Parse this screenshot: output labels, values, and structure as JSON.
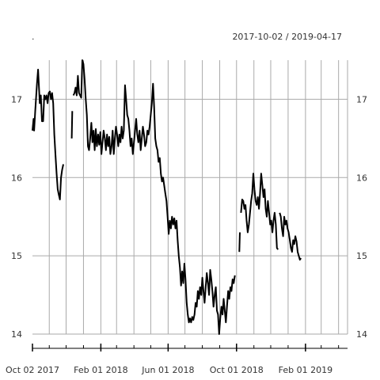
{
  "chart_data": {
    "type": "line",
    "title": ".",
    "subtitle": "2017-10-02 / 2019-04-17",
    "x_range": [
      "2017-10-02",
      "2019-04-17"
    ],
    "ylim": [
      14,
      17.5
    ],
    "y_ticks": [
      14,
      15,
      16,
      17
    ],
    "y_tick_labels": [
      "14",
      "15",
      "16",
      "17"
    ],
    "x_ticks": [
      "2017-10-02",
      "2018-02-01",
      "2018-06-01",
      "2018-10-01",
      "2019-02-01"
    ],
    "x_tick_labels": [
      "Oct 02 2017",
      "Feb 01 2018",
      "Jun 01 2018",
      "Oct 01 2018",
      "Feb 01 2019"
    ],
    "grid": true,
    "legend": "none",
    "line_color": "#000000",
    "grid_color": "#aaaaaa",
    "series": [
      {
        "segments": [
          [
            [
              "2017-10-02",
              16.6
            ],
            [
              "2017-10-04",
              16.75
            ],
            [
              "2017-10-05",
              16.6
            ],
            [
              "2017-10-07",
              16.85
            ],
            [
              "2017-10-10",
              17.2
            ],
            [
              "2017-10-12",
              17.38
            ],
            [
              "2017-10-14",
              17.1
            ],
            [
              "2017-10-15",
              16.95
            ],
            [
              "2017-10-17",
              17.05
            ],
            [
              "2017-10-19",
              16.72
            ],
            [
              "2017-10-21",
              16.72
            ],
            [
              "2017-10-23",
              17.05
            ],
            [
              "2017-10-25",
              17.0
            ],
            [
              "2017-10-27",
              17.05
            ],
            [
              "2017-10-29",
              16.95
            ],
            [
              "2017-10-31",
              17.08
            ],
            [
              "2017-11-02",
              17.1
            ],
            [
              "2017-11-04",
              17.0
            ],
            [
              "2017-11-06",
              17.08
            ],
            [
              "2017-11-08",
              16.95
            ],
            [
              "2017-11-10",
              16.55
            ],
            [
              "2017-11-12",
              16.3
            ],
            [
              "2017-11-14",
              16.05
            ],
            [
              "2017-11-16",
              15.85
            ],
            [
              "2017-11-18",
              15.78
            ],
            [
              "2017-11-20",
              15.72
            ],
            [
              "2017-11-22",
              16.0
            ],
            [
              "2017-11-24",
              16.1
            ],
            [
              "2017-11-26",
              16.17
            ]
          ],
          [
            [
              "2017-12-11",
              16.5
            ],
            [
              "2017-12-12",
              16.85
            ]
          ],
          [
            [
              "2017-12-14",
              17.05
            ],
            [
              "2017-12-16",
              17.08
            ],
            [
              "2017-12-18",
              17.15
            ],
            [
              "2017-12-20",
              17.05
            ],
            [
              "2017-12-22",
              17.3
            ],
            [
              "2017-12-24",
              17.08
            ],
            [
              "2017-12-26",
              17.05
            ],
            [
              "2017-12-28",
              17.02
            ],
            [
              "2017-12-30",
              17.5
            ],
            [
              "2018-01-01",
              17.45
            ],
            [
              "2018-01-03",
              17.25
            ],
            [
              "2018-01-05",
              17.0
            ],
            [
              "2018-01-07",
              16.8
            ],
            [
              "2018-01-09",
              16.4
            ],
            [
              "2018-01-11",
              16.35
            ],
            [
              "2018-01-13",
              16.5
            ],
            [
              "2018-01-15",
              16.7
            ],
            [
              "2018-01-17",
              16.45
            ],
            [
              "2018-01-19",
              16.6
            ],
            [
              "2018-01-21",
              16.35
            ],
            [
              "2018-01-23",
              16.62
            ],
            [
              "2018-01-25",
              16.4
            ],
            [
              "2018-01-27",
              16.55
            ],
            [
              "2018-01-29",
              16.42
            ],
            [
              "2018-01-31",
              16.58
            ],
            [
              "2018-02-02",
              16.3
            ],
            [
              "2018-02-04",
              16.45
            ],
            [
              "2018-02-06",
              16.6
            ],
            [
              "2018-02-08",
              16.5
            ],
            [
              "2018-02-10",
              16.35
            ],
            [
              "2018-02-12",
              16.55
            ],
            [
              "2018-02-14",
              16.4
            ],
            [
              "2018-02-16",
              16.52
            ],
            [
              "2018-02-18",
              16.3
            ],
            [
              "2018-02-20",
              16.4
            ],
            [
              "2018-02-22",
              16.6
            ],
            [
              "2018-02-24",
              16.3
            ],
            [
              "2018-02-26",
              16.5
            ],
            [
              "2018-02-28",
              16.65
            ],
            [
              "2018-03-02",
              16.55
            ],
            [
              "2018-03-04",
              16.4
            ],
            [
              "2018-03-06",
              16.55
            ],
            [
              "2018-03-08",
              16.45
            ],
            [
              "2018-03-10",
              16.65
            ],
            [
              "2018-03-12",
              16.5
            ],
            [
              "2018-03-14",
              16.6
            ],
            [
              "2018-03-16",
              17.18
            ],
            [
              "2018-03-18",
              17.0
            ],
            [
              "2018-03-20",
              16.8
            ],
            [
              "2018-03-22",
              16.75
            ],
            [
              "2018-03-24",
              16.6
            ],
            [
              "2018-03-26",
              16.4
            ],
            [
              "2018-03-28",
              16.5
            ],
            [
              "2018-03-30",
              16.3
            ],
            [
              "2018-04-01",
              16.45
            ],
            [
              "2018-04-03",
              16.6
            ],
            [
              "2018-04-05",
              16.75
            ],
            [
              "2018-04-07",
              16.55
            ],
            [
              "2018-04-09",
              16.45
            ],
            [
              "2018-04-11",
              16.6
            ],
            [
              "2018-04-13",
              16.35
            ],
            [
              "2018-04-15",
              16.5
            ],
            [
              "2018-04-17",
              16.65
            ],
            [
              "2018-04-19",
              16.55
            ],
            [
              "2018-04-21",
              16.4
            ],
            [
              "2018-04-23",
              16.45
            ],
            [
              "2018-04-25",
              16.6
            ],
            [
              "2018-04-27",
              16.55
            ],
            [
              "2018-04-29",
              16.65
            ],
            [
              "2018-05-01",
              16.8
            ],
            [
              "2018-05-03",
              16.95
            ],
            [
              "2018-05-05",
              17.2
            ],
            [
              "2018-05-07",
              16.9
            ],
            [
              "2018-05-09",
              16.5
            ],
            [
              "2018-05-11",
              16.4
            ],
            [
              "2018-05-13",
              16.35
            ],
            [
              "2018-05-15",
              16.2
            ],
            [
              "2018-05-17",
              16.25
            ],
            [
              "2018-05-19",
              16.05
            ],
            [
              "2018-05-21",
              15.95
            ],
            [
              "2018-05-23",
              16.0
            ],
            [
              "2018-05-25",
              15.9
            ],
            [
              "2018-05-27",
              15.8
            ],
            [
              "2018-05-29",
              15.7
            ],
            [
              "2018-05-31",
              15.5
            ],
            [
              "2018-06-02",
              15.28
            ],
            [
              "2018-06-04",
              15.45
            ],
            [
              "2018-06-06",
              15.35
            ],
            [
              "2018-06-08",
              15.5
            ],
            [
              "2018-06-10",
              15.4
            ],
            [
              "2018-06-12",
              15.48
            ],
            [
              "2018-06-14",
              15.35
            ],
            [
              "2018-06-16",
              15.45
            ],
            [
              "2018-06-18",
              15.2
            ],
            [
              "2018-06-20",
              15.0
            ],
            [
              "2018-06-22",
              14.85
            ],
            [
              "2018-06-24",
              14.62
            ],
            [
              "2018-06-26",
              14.8
            ],
            [
              "2018-06-28",
              14.65
            ],
            [
              "2018-06-30",
              14.9
            ],
            [
              "2018-07-02",
              14.7
            ],
            [
              "2018-07-04",
              14.4
            ],
            [
              "2018-07-06",
              14.25
            ],
            [
              "2018-07-08",
              14.15
            ],
            [
              "2018-07-10",
              14.2
            ],
            [
              "2018-07-12",
              14.15
            ],
            [
              "2018-07-14",
              14.22
            ],
            [
              "2018-07-16",
              14.18
            ],
            [
              "2018-07-18",
              14.25
            ],
            [
              "2018-07-20",
              14.4
            ],
            [
              "2018-07-22",
              14.35
            ],
            [
              "2018-07-24",
              14.55
            ],
            [
              "2018-07-26",
              14.45
            ],
            [
              "2018-07-28",
              14.6
            ],
            [
              "2018-07-30",
              14.5
            ],
            [
              "2018-08-01",
              14.72
            ],
            [
              "2018-08-03",
              14.55
            ],
            [
              "2018-08-05",
              14.4
            ],
            [
              "2018-08-07",
              14.6
            ],
            [
              "2018-08-09",
              14.78
            ],
            [
              "2018-08-11",
              14.65
            ],
            [
              "2018-08-13",
              14.5
            ],
            [
              "2018-08-15",
              14.82
            ],
            [
              "2018-08-17",
              14.7
            ],
            [
              "2018-08-19",
              14.55
            ],
            [
              "2018-08-21",
              14.35
            ],
            [
              "2018-08-23",
              14.5
            ],
            [
              "2018-08-25",
              14.6
            ],
            [
              "2018-08-27",
              14.3
            ],
            [
              "2018-08-29",
              14.25
            ],
            [
              "2018-08-31",
              14.0
            ],
            [
              "2018-09-02",
              14.2
            ],
            [
              "2018-09-04",
              14.35
            ],
            [
              "2018-09-06",
              14.25
            ],
            [
              "2018-09-08",
              14.45
            ],
            [
              "2018-09-10",
              14.3
            ],
            [
              "2018-09-12",
              14.15
            ],
            [
              "2018-09-14",
              14.35
            ],
            [
              "2018-09-16",
              14.55
            ],
            [
              "2018-09-18",
              14.45
            ],
            [
              "2018-09-20",
              14.6
            ],
            [
              "2018-09-22",
              14.55
            ],
            [
              "2018-09-24",
              14.7
            ],
            [
              "2018-09-26",
              14.65
            ],
            [
              "2018-09-28",
              14.75
            ]
          ],
          [
            [
              "2018-10-06",
              15.05
            ],
            [
              "2018-10-07",
              15.3
            ]
          ],
          [
            [
              "2018-10-09",
              15.55
            ],
            [
              "2018-10-11",
              15.72
            ],
            [
              "2018-10-13",
              15.7
            ],
            [
              "2018-10-15",
              15.6
            ],
            [
              "2018-10-17",
              15.65
            ],
            [
              "2018-10-19",
              15.45
            ],
            [
              "2018-10-21",
              15.3
            ],
            [
              "2018-10-23",
              15.4
            ],
            [
              "2018-10-25",
              15.55
            ],
            [
              "2018-10-27",
              15.7
            ],
            [
              "2018-10-29",
              15.8
            ],
            [
              "2018-10-31",
              16.05
            ],
            [
              "2018-11-02",
              15.85
            ],
            [
              "2018-11-04",
              15.7
            ],
            [
              "2018-11-06",
              15.65
            ],
            [
              "2018-11-08",
              15.75
            ],
            [
              "2018-11-10",
              15.6
            ],
            [
              "2018-11-12",
              15.8
            ],
            [
              "2018-11-14",
              16.05
            ],
            [
              "2018-11-16",
              15.9
            ],
            [
              "2018-11-18",
              15.75
            ],
            [
              "2018-11-20",
              15.85
            ],
            [
              "2018-11-22",
              15.6
            ],
            [
              "2018-11-24",
              15.5
            ],
            [
              "2018-11-26",
              15.7
            ],
            [
              "2018-11-28",
              15.55
            ],
            [
              "2018-11-30",
              15.4
            ],
            [
              "2018-12-02",
              15.45
            ],
            [
              "2018-12-04",
              15.3
            ],
            [
              "2018-12-06",
              15.45
            ],
            [
              "2018-12-08",
              15.55
            ],
            [
              "2018-12-10",
              15.4
            ],
            [
              "2018-12-12",
              15.1
            ],
            [
              "2018-12-14",
              15.08
            ]
          ],
          [
            [
              "2018-12-17",
              15.55
            ],
            [
              "2018-12-19",
              15.5
            ],
            [
              "2018-12-21",
              15.35
            ],
            [
              "2018-12-23",
              15.25
            ],
            [
              "2018-12-25",
              15.5
            ],
            [
              "2018-12-27",
              15.4
            ],
            [
              "2018-12-29",
              15.45
            ],
            [
              "2018-12-31",
              15.35
            ],
            [
              "2019-01-02",
              15.3
            ],
            [
              "2019-01-04",
              15.2
            ],
            [
              "2019-01-06",
              15.1
            ],
            [
              "2019-01-08",
              15.05
            ],
            [
              "2019-01-10",
              15.2
            ],
            [
              "2019-01-12",
              15.15
            ],
            [
              "2019-01-14",
              15.25
            ],
            [
              "2019-01-16",
              15.18
            ],
            [
              "2019-01-18",
              15.05
            ],
            [
              "2019-01-20",
              15.0
            ],
            [
              "2019-01-22",
              14.95
            ],
            [
              "2019-01-24",
              14.97
            ]
          ]
        ]
      }
    ]
  }
}
